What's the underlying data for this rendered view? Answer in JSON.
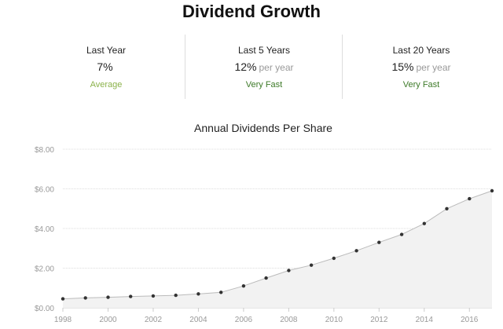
{
  "header": {
    "title": "Dividend Growth"
  },
  "stats": [
    {
      "label": "Last Year",
      "value": "7%",
      "unit": "",
      "rating": "Average",
      "rating_color": "#8bb24a"
    },
    {
      "label": "Last 5 Years",
      "value": "12%",
      "unit": "per year",
      "rating": "Very Fast",
      "rating_color": "#3d7a28"
    },
    {
      "label": "Last 20 Years",
      "value": "15%",
      "unit": "per year",
      "rating": "Very Fast",
      "rating_color": "#3d7a28"
    }
  ],
  "chart_data": {
    "type": "area",
    "title": "Annual Dividends Per Share",
    "xlabel": "",
    "ylabel": "",
    "x": [
      1998,
      1999,
      2000,
      2001,
      2002,
      2003,
      2004,
      2005,
      2006,
      2007,
      2008,
      2009,
      2010,
      2011,
      2012,
      2013,
      2014,
      2015,
      2016,
      2017
    ],
    "series": [
      {
        "values": [
          0.45,
          0.5,
          0.53,
          0.57,
          0.6,
          0.63,
          0.7,
          0.78,
          1.1,
          1.5,
          1.88,
          2.15,
          2.5,
          2.88,
          3.3,
          3.7,
          4.25,
          5.0,
          5.5,
          5.9
        ]
      }
    ],
    "ylim": [
      0,
      8
    ],
    "xlim": [
      1998,
      2017
    ],
    "yticks": [
      0,
      2,
      4,
      6,
      8
    ],
    "ytick_labels": [
      "$0.00",
      "$2.00",
      "$4.00",
      "$6.00",
      "$8.00"
    ],
    "xticks": [
      1998,
      2000,
      2002,
      2004,
      2006,
      2008,
      2010,
      2012,
      2014,
      2016
    ],
    "xtick_labels": [
      "1998",
      "2000",
      "2002",
      "2004",
      "2006",
      "2008",
      "2010",
      "2012",
      "2014",
      "2016"
    ],
    "grid": true,
    "colors": {
      "line": "#bbbbbb",
      "fill": "#f2f2f2",
      "marker": "#333333",
      "grid": "#dddddd",
      "axis_text": "#999999"
    }
  }
}
